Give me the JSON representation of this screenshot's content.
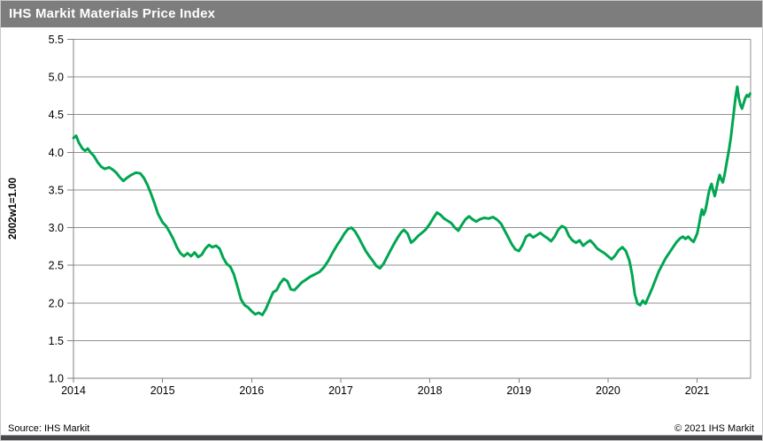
{
  "header": {
    "title": "IHS Markit Materials Price Index"
  },
  "footer": {
    "source": "Source: IHS Markit",
    "copyright": "© 2021  IHS Markit"
  },
  "colors": {
    "header_bg": "#7d7d7d",
    "header_text": "#ffffff",
    "line_green": "#00A651",
    "grid_gray": "#909090",
    "axis_gray": "#808080",
    "tick_text": "#000000",
    "bottom_bar": "#46484e"
  },
  "chart_data": {
    "type": "line",
    "title": "IHS Markit Materials Price Index",
    "xlabel": "",
    "ylabel": "2002w1=1.00",
    "ylim": [
      1.0,
      5.5
    ],
    "xlim": [
      2014.0,
      2021.6
    ],
    "y_ticks": [
      5.5,
      5.0,
      4.5,
      4.0,
      3.5,
      3.0,
      2.5,
      2.0,
      1.5,
      1.0
    ],
    "x_ticks": [
      2014,
      2015,
      2016,
      2017,
      2018,
      2019,
      2020,
      2021
    ],
    "grid": "horizontal",
    "legend": "none",
    "series": [
      {
        "name": "Materials Price Index (2002w1=1.00)",
        "color": "#00A651",
        "points": [
          [
            2014.0,
            4.19
          ],
          [
            2014.03,
            4.22
          ],
          [
            2014.06,
            4.13
          ],
          [
            2014.1,
            4.05
          ],
          [
            2014.13,
            4.02
          ],
          [
            2014.16,
            4.05
          ],
          [
            2014.19,
            4.0
          ],
          [
            2014.23,
            3.95
          ],
          [
            2014.27,
            3.87
          ],
          [
            2014.31,
            3.81
          ],
          [
            2014.35,
            3.78
          ],
          [
            2014.4,
            3.8
          ],
          [
            2014.44,
            3.77
          ],
          [
            2014.48,
            3.73
          ],
          [
            2014.52,
            3.67
          ],
          [
            2014.56,
            3.62
          ],
          [
            2014.6,
            3.66
          ],
          [
            2014.65,
            3.7
          ],
          [
            2014.7,
            3.73
          ],
          [
            2014.75,
            3.72
          ],
          [
            2014.79,
            3.66
          ],
          [
            2014.83,
            3.57
          ],
          [
            2014.87,
            3.45
          ],
          [
            2014.91,
            3.32
          ],
          [
            2014.95,
            3.18
          ],
          [
            2015.0,
            3.07
          ],
          [
            2015.04,
            3.02
          ],
          [
            2015.08,
            2.94
          ],
          [
            2015.12,
            2.85
          ],
          [
            2015.16,
            2.74
          ],
          [
            2015.2,
            2.66
          ],
          [
            2015.24,
            2.62
          ],
          [
            2015.28,
            2.66
          ],
          [
            2015.32,
            2.62
          ],
          [
            2015.36,
            2.67
          ],
          [
            2015.4,
            2.61
          ],
          [
            2015.44,
            2.64
          ],
          [
            2015.48,
            2.72
          ],
          [
            2015.52,
            2.77
          ],
          [
            2015.56,
            2.74
          ],
          [
            2015.6,
            2.76
          ],
          [
            2015.64,
            2.72
          ],
          [
            2015.68,
            2.6
          ],
          [
            2015.72,
            2.52
          ],
          [
            2015.76,
            2.48
          ],
          [
            2015.8,
            2.38
          ],
          [
            2015.84,
            2.22
          ],
          [
            2015.88,
            2.05
          ],
          [
            2015.92,
            1.97
          ],
          [
            2015.96,
            1.94
          ],
          [
            2016.0,
            1.89
          ],
          [
            2016.04,
            1.85
          ],
          [
            2016.08,
            1.87
          ],
          [
            2016.12,
            1.84
          ],
          [
            2016.16,
            1.92
          ],
          [
            2016.2,
            2.03
          ],
          [
            2016.24,
            2.14
          ],
          [
            2016.28,
            2.17
          ],
          [
            2016.32,
            2.26
          ],
          [
            2016.36,
            2.32
          ],
          [
            2016.4,
            2.29
          ],
          [
            2016.44,
            2.18
          ],
          [
            2016.48,
            2.17
          ],
          [
            2016.52,
            2.22
          ],
          [
            2016.56,
            2.27
          ],
          [
            2016.61,
            2.31
          ],
          [
            2016.66,
            2.35
          ],
          [
            2016.71,
            2.38
          ],
          [
            2016.76,
            2.41
          ],
          [
            2016.81,
            2.47
          ],
          [
            2016.86,
            2.56
          ],
          [
            2016.91,
            2.67
          ],
          [
            2016.96,
            2.77
          ],
          [
            2017.0,
            2.84
          ],
          [
            2017.04,
            2.92
          ],
          [
            2017.08,
            2.98
          ],
          [
            2017.12,
            3.0
          ],
          [
            2017.16,
            2.95
          ],
          [
            2017.2,
            2.87
          ],
          [
            2017.24,
            2.78
          ],
          [
            2017.28,
            2.69
          ],
          [
            2017.32,
            2.62
          ],
          [
            2017.36,
            2.56
          ],
          [
            2017.4,
            2.49
          ],
          [
            2017.44,
            2.46
          ],
          [
            2017.48,
            2.52
          ],
          [
            2017.52,
            2.61
          ],
          [
            2017.56,
            2.7
          ],
          [
            2017.6,
            2.79
          ],
          [
            2017.64,
            2.87
          ],
          [
            2017.68,
            2.94
          ],
          [
            2017.71,
            2.97
          ],
          [
            2017.75,
            2.92
          ],
          [
            2017.79,
            2.8
          ],
          [
            2017.83,
            2.84
          ],
          [
            2017.87,
            2.89
          ],
          [
            2017.91,
            2.93
          ],
          [
            2017.95,
            2.97
          ],
          [
            2018.0,
            3.05
          ],
          [
            2018.04,
            3.13
          ],
          [
            2018.08,
            3.2
          ],
          [
            2018.12,
            3.17
          ],
          [
            2018.16,
            3.12
          ],
          [
            2018.2,
            3.09
          ],
          [
            2018.24,
            3.06
          ],
          [
            2018.28,
            3.0
          ],
          [
            2018.32,
            2.96
          ],
          [
            2018.36,
            3.04
          ],
          [
            2018.4,
            3.11
          ],
          [
            2018.44,
            3.15
          ],
          [
            2018.48,
            3.11
          ],
          [
            2018.52,
            3.08
          ],
          [
            2018.56,
            3.11
          ],
          [
            2018.61,
            3.13
          ],
          [
            2018.66,
            3.12
          ],
          [
            2018.71,
            3.14
          ],
          [
            2018.76,
            3.1
          ],
          [
            2018.8,
            3.05
          ],
          [
            2018.84,
            2.96
          ],
          [
            2018.88,
            2.87
          ],
          [
            2018.92,
            2.78
          ],
          [
            2018.96,
            2.71
          ],
          [
            2019.0,
            2.69
          ],
          [
            2019.04,
            2.77
          ],
          [
            2019.08,
            2.88
          ],
          [
            2019.12,
            2.91
          ],
          [
            2019.16,
            2.87
          ],
          [
            2019.2,
            2.9
          ],
          [
            2019.24,
            2.93
          ],
          [
            2019.28,
            2.89
          ],
          [
            2019.32,
            2.86
          ],
          [
            2019.36,
            2.82
          ],
          [
            2019.4,
            2.88
          ],
          [
            2019.44,
            2.97
          ],
          [
            2019.48,
            3.02
          ],
          [
            2019.52,
            3.0
          ],
          [
            2019.56,
            2.89
          ],
          [
            2019.6,
            2.83
          ],
          [
            2019.64,
            2.8
          ],
          [
            2019.68,
            2.83
          ],
          [
            2019.72,
            2.76
          ],
          [
            2019.76,
            2.8
          ],
          [
            2019.8,
            2.83
          ],
          [
            2019.84,
            2.78
          ],
          [
            2019.88,
            2.72
          ],
          [
            2019.92,
            2.69
          ],
          [
            2019.96,
            2.66
          ],
          [
            2020.0,
            2.62
          ],
          [
            2020.04,
            2.58
          ],
          [
            2020.08,
            2.63
          ],
          [
            2020.12,
            2.7
          ],
          [
            2020.16,
            2.74
          ],
          [
            2020.2,
            2.69
          ],
          [
            2020.24,
            2.56
          ],
          [
            2020.27,
            2.38
          ],
          [
            2020.3,
            2.12
          ],
          [
            2020.33,
            1.99
          ],
          [
            2020.36,
            1.97
          ],
          [
            2020.39,
            2.03
          ],
          [
            2020.42,
            1.99
          ],
          [
            2020.45,
            2.07
          ],
          [
            2020.49,
            2.18
          ],
          [
            2020.53,
            2.3
          ],
          [
            2020.57,
            2.42
          ],
          [
            2020.61,
            2.51
          ],
          [
            2020.65,
            2.6
          ],
          [
            2020.69,
            2.67
          ],
          [
            2020.73,
            2.74
          ],
          [
            2020.77,
            2.81
          ],
          [
            2020.81,
            2.86
          ],
          [
            2020.84,
            2.88
          ],
          [
            2020.87,
            2.85
          ],
          [
            2020.9,
            2.88
          ],
          [
            2020.93,
            2.84
          ],
          [
            2020.96,
            2.81
          ],
          [
            2021.0,
            2.92
          ],
          [
            2021.018,
            3.02
          ],
          [
            2021.036,
            3.14
          ],
          [
            2021.054,
            3.24
          ],
          [
            2021.072,
            3.17
          ],
          [
            2021.09,
            3.22
          ],
          [
            2021.108,
            3.32
          ],
          [
            2021.126,
            3.44
          ],
          [
            2021.144,
            3.53
          ],
          [
            2021.162,
            3.58
          ],
          [
            2021.18,
            3.49
          ],
          [
            2021.198,
            3.42
          ],
          [
            2021.216,
            3.51
          ],
          [
            2021.234,
            3.62
          ],
          [
            2021.252,
            3.7
          ],
          [
            2021.27,
            3.64
          ],
          [
            2021.288,
            3.6
          ],
          [
            2021.306,
            3.69
          ],
          [
            2021.324,
            3.81
          ],
          [
            2021.342,
            3.93
          ],
          [
            2021.36,
            4.05
          ],
          [
            2021.378,
            4.2
          ],
          [
            2021.396,
            4.38
          ],
          [
            2021.414,
            4.56
          ],
          [
            2021.432,
            4.74
          ],
          [
            2021.45,
            4.87
          ],
          [
            2021.468,
            4.72
          ],
          [
            2021.486,
            4.63
          ],
          [
            2021.504,
            4.58
          ],
          [
            2021.522,
            4.65
          ],
          [
            2021.54,
            4.72
          ],
          [
            2021.558,
            4.76
          ],
          [
            2021.576,
            4.74
          ],
          [
            2021.594,
            4.78
          ]
        ]
      }
    ]
  }
}
